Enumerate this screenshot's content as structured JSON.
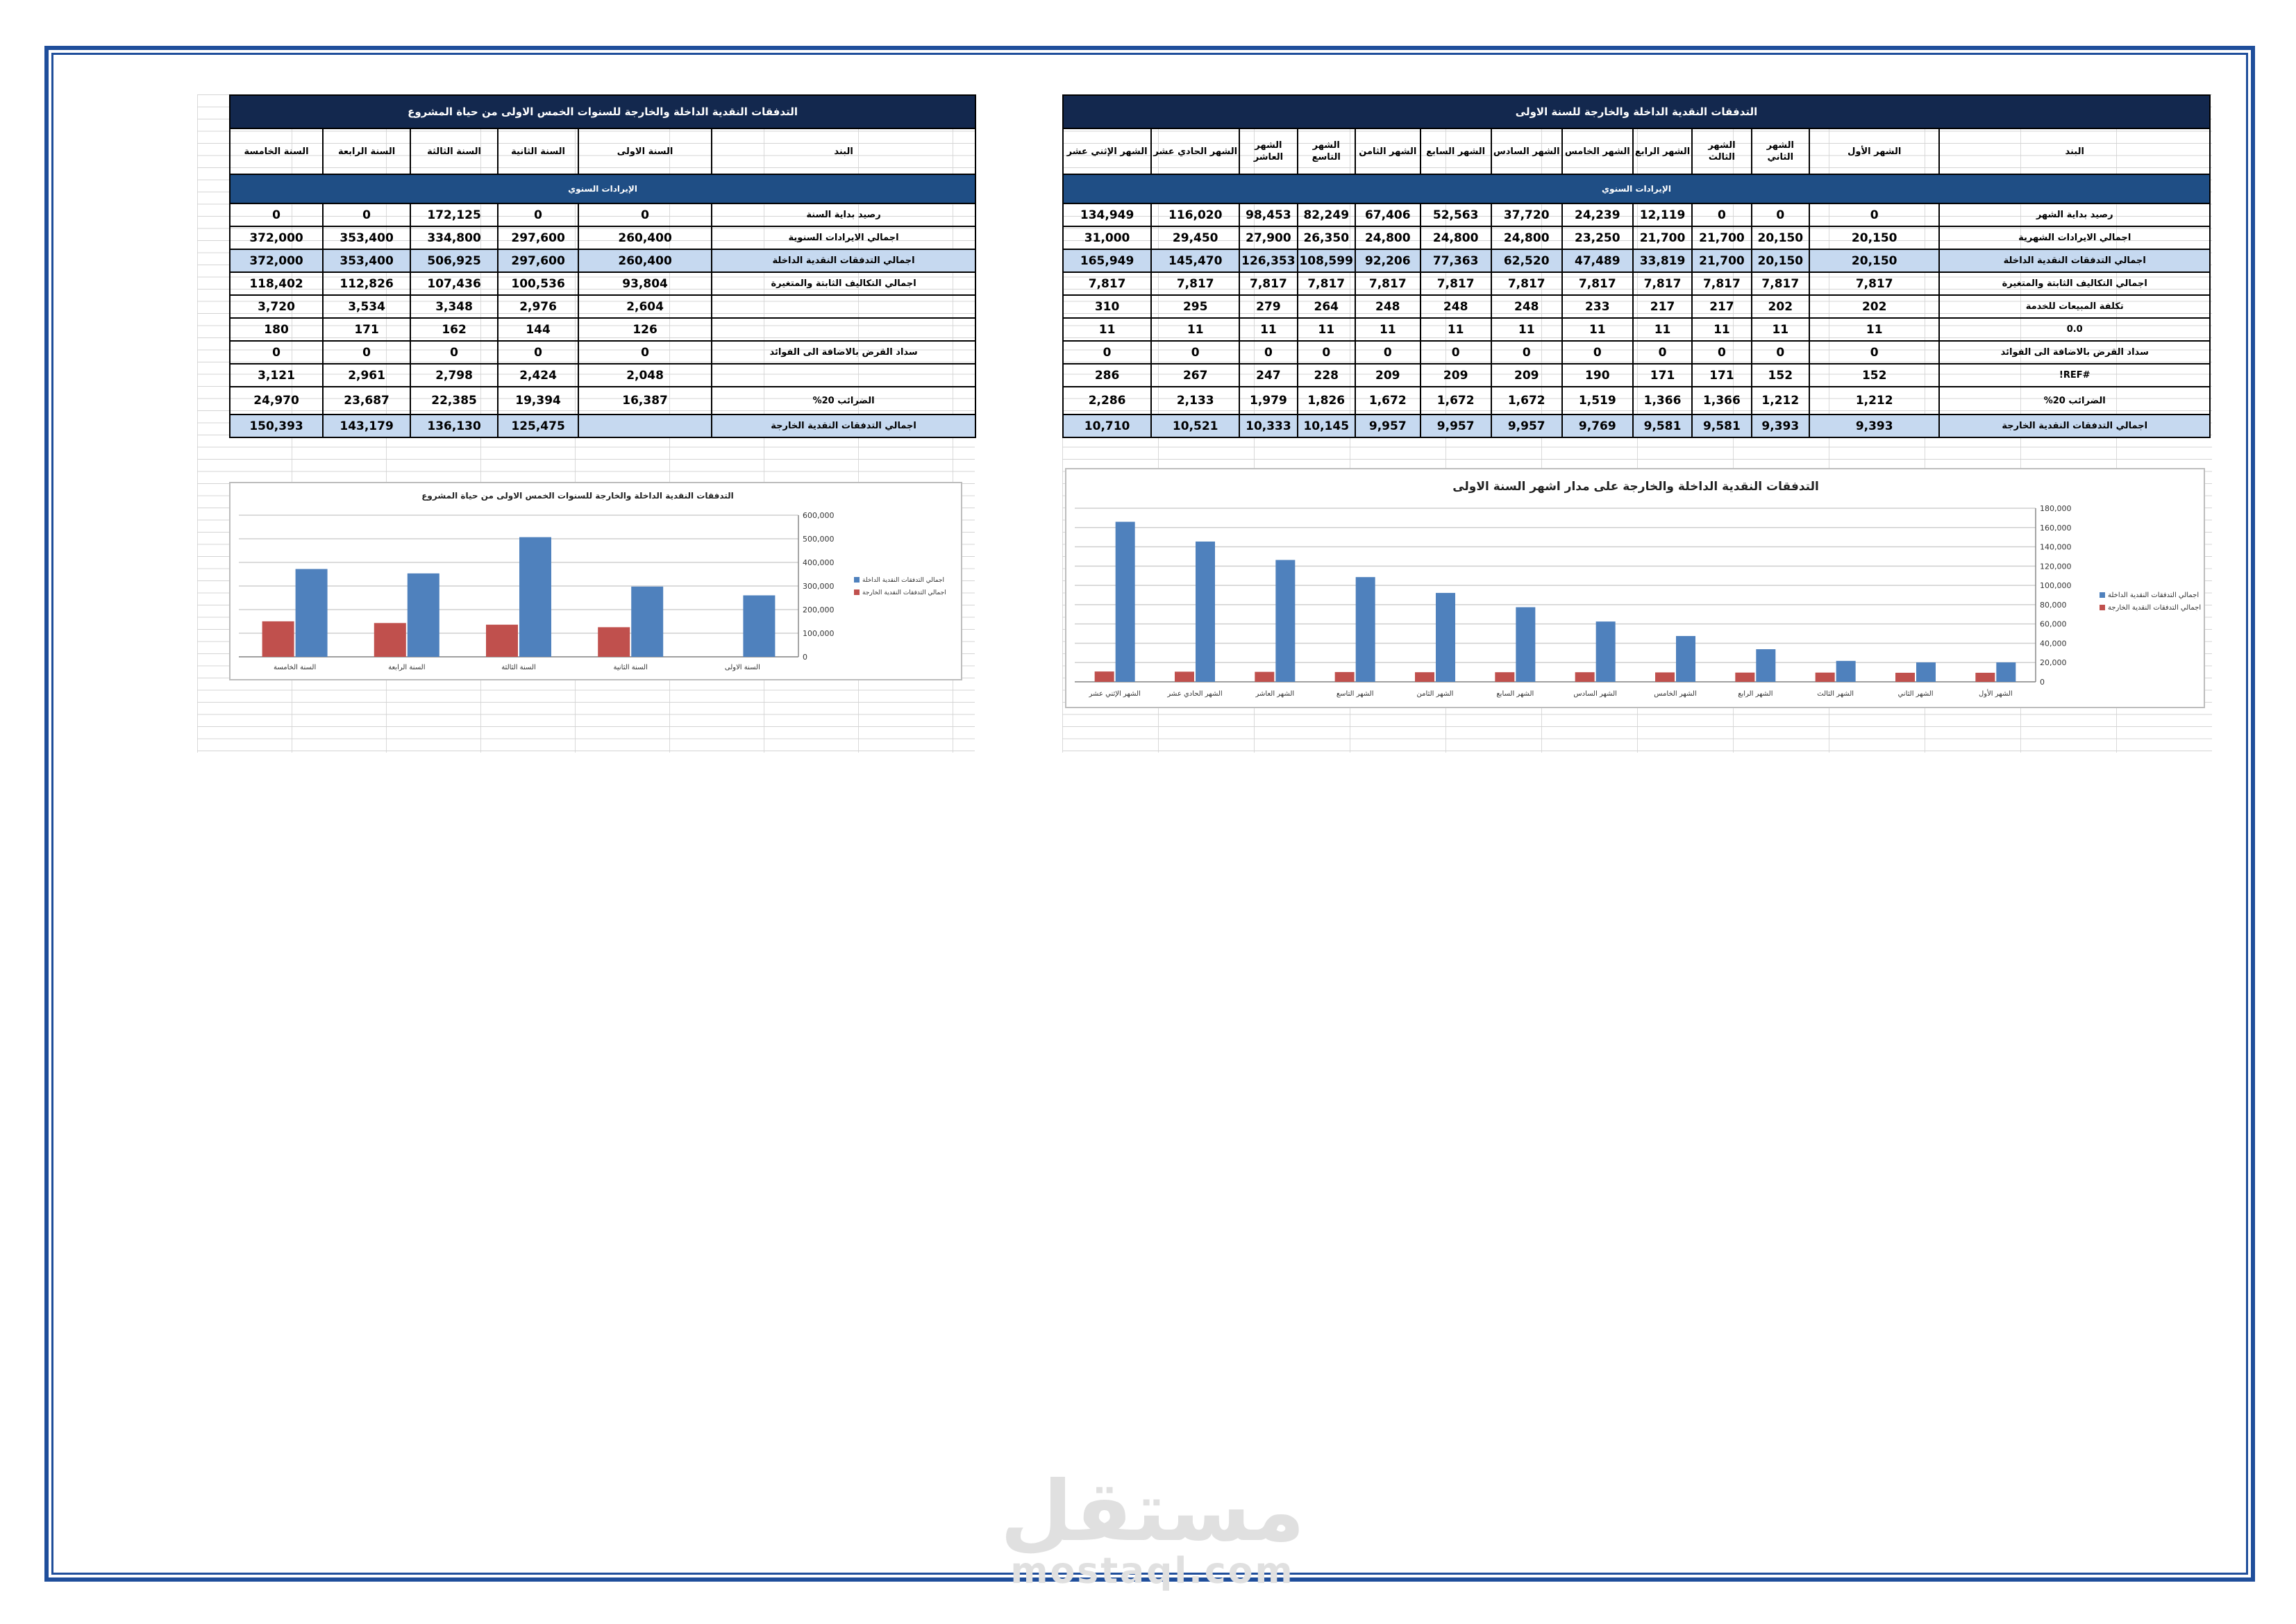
{
  "monthly": {
    "title": "التدفقات النقدية الداخلة والخارجة للسنة الاولى",
    "headers": [
      "البند",
      "الشهر الأول",
      "الشهر الثاني",
      "الشهر الثالث",
      "الشهر الرابع",
      "الشهر الخامس",
      "الشهر السادس",
      "الشهر السابع",
      "الشهر الثامن",
      "الشهر التاسع",
      "الشهر العاشر",
      "الشهر الحادي عشر",
      "الشهر الإثني عشر"
    ],
    "section": "الإيرادات السنوي",
    "rows": [
      {
        "label": "رصيد بداية الشهر",
        "values": [
          "0",
          "0",
          "0",
          "12,119",
          "24,239",
          "37,720",
          "52,563",
          "67,406",
          "82,249",
          "98,453",
          "116,020",
          "134,949"
        ],
        "style": "normal"
      },
      {
        "label": "اجمالي الايرادات الشهرية",
        "values": [
          "20,150",
          "20,150",
          "21,700",
          "21,700",
          "23,250",
          "24,800",
          "24,800",
          "24,800",
          "26,350",
          "27,900",
          "29,450",
          "31,000"
        ],
        "style": "normal"
      },
      {
        "label": "اجمالي التدفقات النقدية الداخلة",
        "values": [
          "20,150",
          "20,150",
          "21,700",
          "33,819",
          "47,489",
          "62,520",
          "77,363",
          "92,206",
          "108,599",
          "126,353",
          "145,470",
          "165,949"
        ],
        "style": "blue"
      },
      {
        "label": "اجمالي التكاليف الثابتة والمتغيرة",
        "values": [
          "7,817",
          "7,817",
          "7,817",
          "7,817",
          "7,817",
          "7,817",
          "7,817",
          "7,817",
          "7,817",
          "7,817",
          "7,817",
          "7,817"
        ],
        "style": "normal"
      },
      {
        "label": "تكلفة المبيعات للخدمة",
        "values": [
          "202",
          "202",
          "217",
          "217",
          "233",
          "248",
          "248",
          "248",
          "264",
          "279",
          "295",
          "310"
        ],
        "style": "normal"
      },
      {
        "label": "0.0",
        "values": [
          "11",
          "11",
          "11",
          "11",
          "11",
          "11",
          "11",
          "11",
          "11",
          "11",
          "11",
          "11"
        ],
        "style": "normal"
      },
      {
        "label": "سداد القرض بالاضافة الى الفوائد",
        "values": [
          "0",
          "0",
          "0",
          "0",
          "0",
          "0",
          "0",
          "0",
          "0",
          "0",
          "0",
          "0"
        ],
        "style": "normal"
      },
      {
        "label": "#REF!",
        "values": [
          "152",
          "152",
          "171",
          "171",
          "190",
          "209",
          "209",
          "209",
          "228",
          "247",
          "267",
          "286"
        ],
        "style": "normal"
      },
      {
        "label": "الضرائب 20%",
        "values": [
          "1,212",
          "1,212",
          "1,366",
          "1,366",
          "1,519",
          "1,672",
          "1,672",
          "1,672",
          "1,826",
          "1,979",
          "2,133",
          "2,286"
        ],
        "style": "tall"
      },
      {
        "label": "اجمالي التدفقات النقدية الخارجة",
        "values": [
          "9,393",
          "9,393",
          "9,581",
          "9,581",
          "9,769",
          "9,957",
          "9,957",
          "9,957",
          "10,145",
          "10,333",
          "10,521",
          "10,710"
        ],
        "style": "blue"
      }
    ]
  },
  "yearly": {
    "title": "التدفقات النقدية الداخلة والخارجة للسنوات الخمس الاولى من حياة المشروع",
    "headers": [
      "البند",
      "السنة الاولى",
      "السنة الثانية",
      "السنة الثالثة",
      "السنة الرابعة",
      "السنة الخامسة"
    ],
    "section": "الإيرادات السنوي",
    "rows": [
      {
        "label": "رصيد بداية السنة",
        "values": [
          "0",
          "0",
          "172,125",
          "0",
          "0"
        ],
        "style": "normal"
      },
      {
        "label": "اجمالي الايرادات السنوية",
        "values": [
          "260,400",
          "297,600",
          "334,800",
          "353,400",
          "372,000"
        ],
        "style": "normal"
      },
      {
        "label": "اجمالي التدفقات النقدية الداخلة",
        "values": [
          "260,400",
          "297,600",
          "506,925",
          "353,400",
          "372,000"
        ],
        "style": "blue"
      },
      {
        "label": "اجمالي التكاليف الثابتة والمتغيرة",
        "values": [
          "93,804",
          "100,536",
          "107,436",
          "112,826",
          "118,402"
        ],
        "style": "normal"
      },
      {
        "label": "",
        "values": [
          "2,604",
          "2,976",
          "3,348",
          "3,534",
          "3,720"
        ],
        "style": "normal"
      },
      {
        "label": "",
        "values": [
          "126",
          "144",
          "162",
          "171",
          "180"
        ],
        "style": "normal"
      },
      {
        "label": "سداد القرض بالاضافة الى الفوائد",
        "values": [
          "0",
          "0",
          "0",
          "0",
          "0"
        ],
        "style": "normal"
      },
      {
        "label": "",
        "values": [
          "2,048",
          "2,424",
          "2,798",
          "2,961",
          "3,121"
        ],
        "style": "normal"
      },
      {
        "label": "الضرائب 20%",
        "values": [
          "16,387",
          "19,394",
          "22,385",
          "23,687",
          "24,970"
        ],
        "style": "tall"
      },
      {
        "label": "اجمالي التدفقات النقدية الخارجة",
        "values": [
          "",
          "125,475",
          "136,130",
          "143,179",
          "150,393"
        ],
        "style": "blue"
      }
    ]
  },
  "chart_data": [
    {
      "type": "bar",
      "title": "التدفقات النقدية الداخلة والخارجة على مدار اشهر السنة الاولى",
      "categories": [
        "الشهر الأول",
        "الشهر الثاني",
        "الشهر الثالث",
        "الشهر الرابع",
        "الشهر الخامس",
        "الشهر السادس",
        "الشهر السابع",
        "الشهر الثامن",
        "الشهر التاسع",
        "الشهر العاشر",
        "الشهر الحادي عشر",
        "الشهر الإثني عشر"
      ],
      "series": [
        {
          "name": "اجمالي التدفقات النقدية الداخلة",
          "color": "#4f81bd",
          "values": [
            20150,
            20150,
            21700,
            33819,
            47489,
            62520,
            77363,
            92206,
            108599,
            126353,
            145470,
            165949
          ]
        },
        {
          "name": "اجمالي التدفقات النقدية الخارجة",
          "color": "#c0504d",
          "values": [
            9393,
            9393,
            9581,
            9581,
            9769,
            9957,
            9957,
            9957,
            10145,
            10333,
            10521,
            10710
          ]
        }
      ],
      "ylim": [
        0,
        180000
      ],
      "yticks": [
        "0",
        "20,000",
        "40,000",
        "60,000",
        "80,000",
        "100,000",
        "120,000",
        "140,000",
        "160,000",
        "180,000"
      ],
      "ytick_values": [
        0,
        20000,
        40000,
        60000,
        80000,
        100000,
        120000,
        140000,
        160000,
        180000
      ],
      "axis_side": "right",
      "category_order": "right-to-left",
      "legend": "right",
      "grid": true
    },
    {
      "type": "bar",
      "title": "التدفقات النقدية الداخلة والخارجة للسنوات الخمس الاولى من حياة المشروع",
      "categories": [
        "السنة الاولى",
        "السنة الثانية",
        "السنة الثالثة",
        "السنة الرابعة",
        "السنة الخامسة"
      ],
      "series": [
        {
          "name": "اجمالي التدفقات النقدية الداخلة",
          "color": "#4f81bd",
          "values": [
            260400,
            297600,
            506925,
            353400,
            372000
          ]
        },
        {
          "name": "اجمالي التدفقات النقدية الخارجة",
          "color": "#c0504d",
          "values": [
            0,
            125475,
            136130,
            143179,
            150393
          ]
        }
      ],
      "ylim": [
        0,
        600000
      ],
      "yticks": [
        "0",
        "100,000",
        "200,000",
        "300,000",
        "400,000",
        "500,000",
        "600,000"
      ],
      "ytick_values": [
        0,
        100000,
        200000,
        300000,
        400000,
        500000,
        600000
      ],
      "axis_side": "right",
      "category_order": "right-to-left",
      "legend": "right",
      "grid": true
    }
  ],
  "watermark": {
    "arabic": "مستقل",
    "latin": "mostaql.com"
  }
}
